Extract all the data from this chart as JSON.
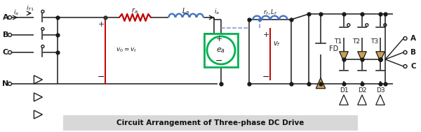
{
  "title": "Circuit Arrangement of Three-phase DC Drive",
  "bg_color": "#ffffff",
  "caption_bg": "#d8d8d8",
  "line_color": "#1a1a1a",
  "red_color": "#c00000",
  "blue_color": "#4472c4",
  "blue_dash": "#7096c8",
  "green_color": "#00b050",
  "resistor_color": "#c00000",
  "inductor_color": "#4472c4",
  "diode_fill": "#c8a050",
  "thyristor_fill": "#ffffff",
  "phase_labels": [
    "A",
    "B",
    "C",
    "N"
  ],
  "transistor_labels": [
    "T1",
    "T2",
    "T3"
  ],
  "diode_labels": [
    "D1",
    "D2",
    "D3"
  ],
  "output_labels": [
    "A",
    "B",
    "C"
  ],
  "figw": 6.0,
  "figh": 1.89
}
